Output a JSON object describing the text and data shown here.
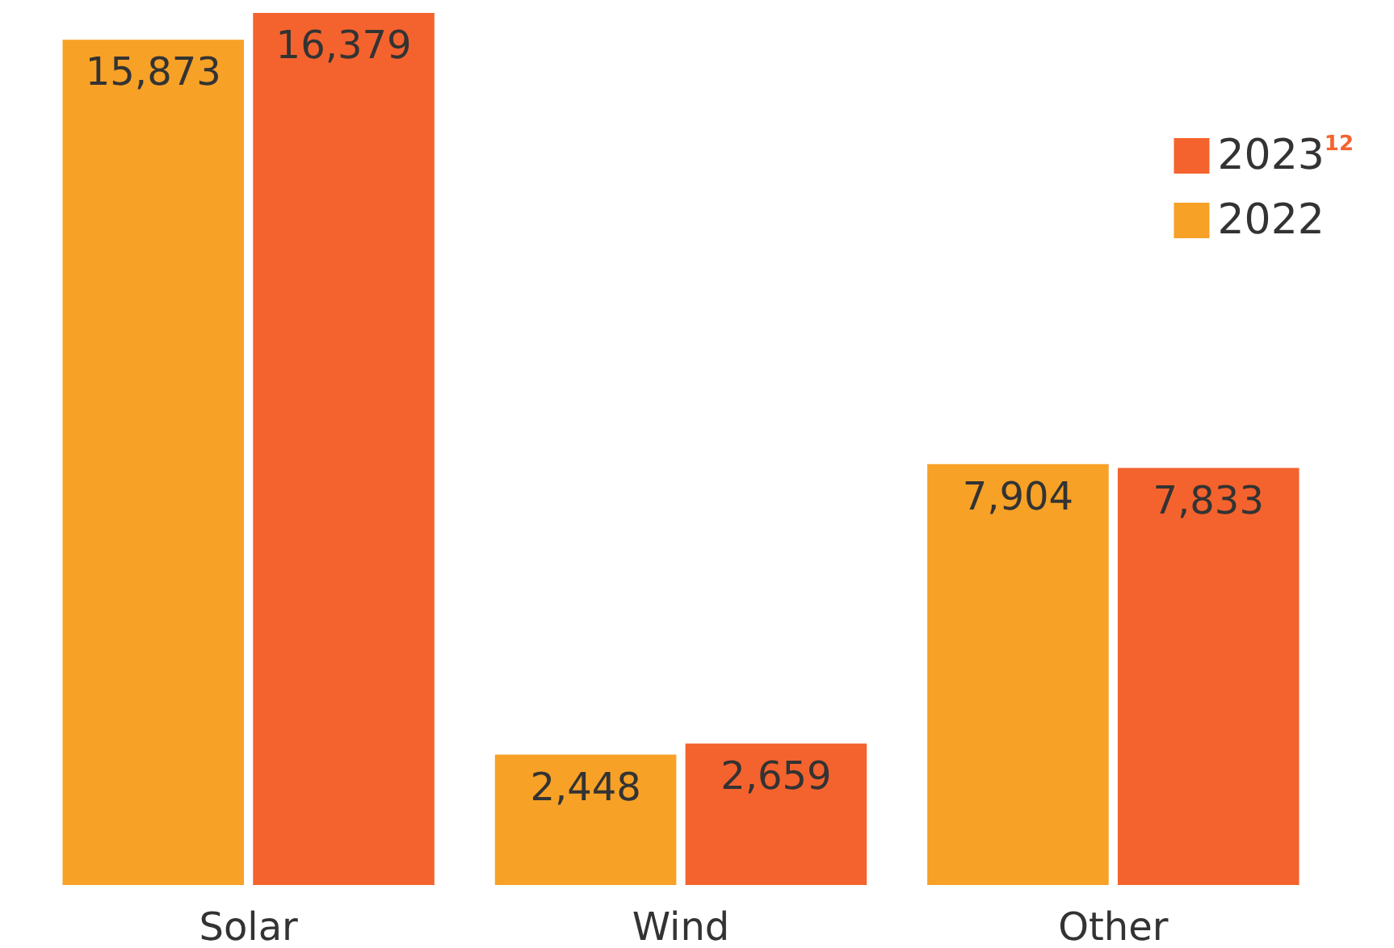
{
  "chart_data": {
    "type": "bar",
    "categories": [
      "Solar",
      "Wind",
      "Other"
    ],
    "series": [
      {
        "name": "2022",
        "color": "#f7a127",
        "values": [
          15873,
          2448,
          7904
        ],
        "value_labels": [
          "15,873",
          "2,448",
          "7,904"
        ]
      },
      {
        "name": "2023$^{12}$",
        "color": "#f4632e",
        "values": [
          16379,
          2659,
          7833
        ],
        "value_labels": [
          "16,379",
          "2,659",
          "7,833"
        ]
      }
    ],
    "legend": "top right"
  }
}
